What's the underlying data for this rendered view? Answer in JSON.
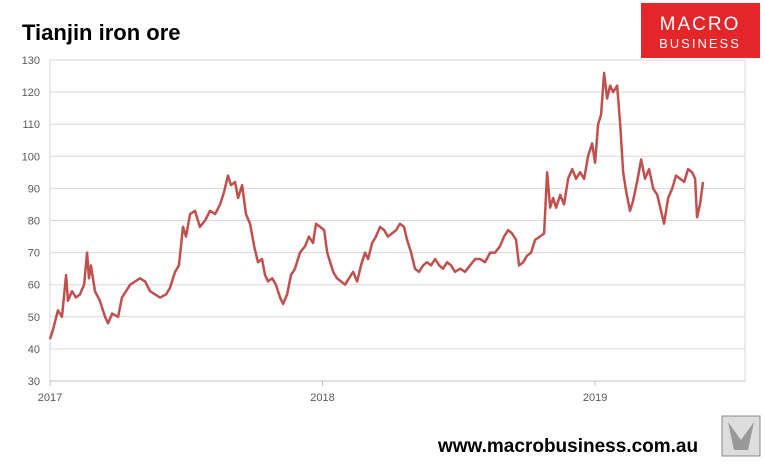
{
  "chart_data": {
    "type": "line",
    "title": "Tianjin iron ore",
    "logo_text": [
      "MACRO",
      "BUSINESS"
    ],
    "footer": "www.macrobusiness.com.au",
    "xlim": [
      2017,
      2019.55
    ],
    "xticks": [
      2017,
      2018,
      2019
    ],
    "ylim": [
      30,
      130
    ],
    "yticks": [
      30,
      40,
      50,
      60,
      70,
      80,
      90,
      100,
      110,
      120,
      130
    ],
    "grid": true,
    "x": [
      2017.0,
      2017.011,
      2017.029,
      2017.044,
      2017.059,
      2017.066,
      2017.081,
      2017.095,
      2017.11,
      2017.125,
      2017.136,
      2017.143,
      2017.15,
      2017.165,
      2017.183,
      2017.202,
      2017.213,
      2017.228,
      2017.25,
      2017.264,
      2017.279,
      2017.294,
      2017.312,
      2017.33,
      2017.349,
      2017.367,
      2017.385,
      2017.404,
      2017.426,
      2017.44,
      2017.459,
      2017.473,
      2017.488,
      2017.499,
      2017.514,
      2017.532,
      2017.55,
      2017.569,
      2017.587,
      2017.606,
      2017.624,
      2017.639,
      2017.653,
      2017.664,
      2017.679,
      2017.69,
      2017.705,
      2017.719,
      2017.734,
      2017.749,
      2017.763,
      2017.778,
      2017.789,
      2017.8,
      2017.815,
      2017.829,
      2017.844,
      2017.855,
      2017.87,
      2017.884,
      2017.899,
      2017.917,
      2017.936,
      2017.95,
      2017.965,
      2017.976,
      2017.991,
      2018.006,
      2018.017,
      2018.028,
      2018.039,
      2018.053,
      2018.068,
      2018.083,
      2018.097,
      2018.112,
      2018.127,
      2018.141,
      2018.156,
      2018.167,
      2018.182,
      2018.196,
      2018.211,
      2018.226,
      2018.24,
      2018.255,
      2018.27,
      2018.284,
      2018.299,
      2018.31,
      2018.325,
      2018.339,
      2018.354,
      2018.369,
      2018.383,
      2018.398,
      2018.413,
      2018.428,
      2018.442,
      2018.457,
      2018.472,
      2018.486,
      2018.505,
      2018.523,
      2018.541,
      2018.56,
      2018.578,
      2018.596,
      2018.615,
      2018.633,
      2018.651,
      2018.666,
      2018.681,
      2018.695,
      2018.71,
      2018.721,
      2018.736,
      2018.75,
      2018.765,
      2018.78,
      2018.798,
      2018.813,
      2018.824,
      2018.835,
      2018.846,
      2018.857,
      2018.872,
      2018.886,
      2018.901,
      2018.916,
      2018.93,
      2018.945,
      2018.96,
      2018.974,
      2018.989,
      2019.0,
      2019.011,
      2019.022,
      2019.033,
      2019.044,
      2019.055,
      2019.066,
      2019.081,
      2019.092,
      2019.103,
      2019.114,
      2019.128,
      2019.139,
      2019.154,
      2019.169,
      2019.183,
      2019.198,
      2019.213,
      2019.228,
      2019.242,
      2019.253,
      2019.268,
      2019.283,
      2019.297,
      2019.312,
      2019.327,
      2019.341,
      2019.356,
      2019.367,
      2019.374,
      2019.385,
      2019.396
    ],
    "series": [
      {
        "name": "Tianjin iron ore",
        "color": "#c0504d",
        "values": [
          43,
          46,
          52,
          50,
          63,
          55,
          58,
          56,
          57,
          60,
          70,
          62,
          66,
          58,
          55,
          50,
          48,
          51,
          50,
          56,
          58,
          60,
          61,
          62,
          61,
          58,
          57,
          56,
          57,
          59,
          64,
          66,
          78,
          75,
          82,
          83,
          78,
          80,
          83,
          82,
          85,
          89,
          94,
          91,
          92,
          87,
          91,
          82,
          79,
          72,
          67,
          68,
          63,
          61,
          62,
          60,
          56,
          54,
          57,
          63,
          65,
          70,
          72,
          75,
          73,
          79,
          78,
          77,
          70,
          67,
          64,
          62,
          61,
          60,
          62,
          64,
          61,
          66,
          70,
          68,
          73,
          75,
          78,
          77,
          75,
          76,
          77,
          79,
          78,
          74,
          70,
          65,
          64,
          66,
          67,
          66,
          68,
          66,
          65,
          67,
          66,
          64,
          65,
          64,
          66,
          68,
          68,
          67,
          70,
          70,
          72,
          75,
          77,
          76,
          74,
          66,
          67,
          69,
          70,
          74,
          75,
          76,
          95,
          84,
          87,
          84,
          88,
          85,
          93,
          96,
          93,
          95,
          93,
          100,
          104,
          98,
          110,
          113,
          126,
          118,
          122,
          120,
          122,
          110,
          95,
          89,
          83,
          86,
          92,
          99,
          93,
          96,
          90,
          88,
          83,
          79,
          87,
          90,
          94,
          93,
          92,
          96,
          95,
          93,
          81,
          85,
          92
        ]
      }
    ]
  }
}
